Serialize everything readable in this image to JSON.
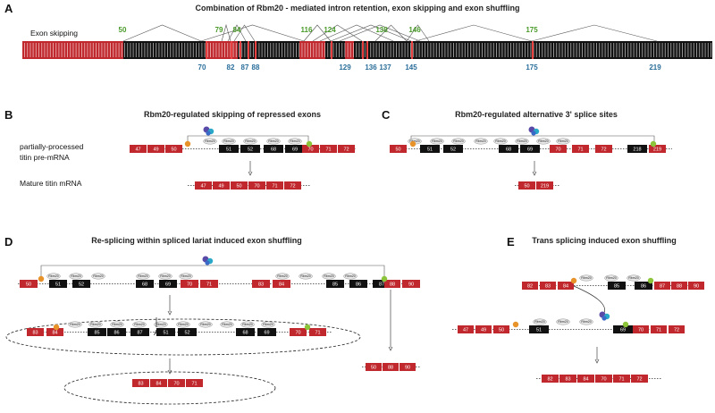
{
  "colors": {
    "exon_red": "#c0282d",
    "exon_black": "#111111",
    "green_label": "#4a9a2a",
    "blue_label": "#2a6e9a",
    "branch_orange": "#e8922a",
    "branch_green": "#8cc43a",
    "rbm20": "#e9e9e9"
  },
  "panelA": {
    "letter": "A",
    "title": "Combination of Rbm20 - mediated intron retention, exon skipping and exon shuffling",
    "row_label": "Exon skipping",
    "green_labels": [
      "50",
      "79",
      "84",
      "116",
      "124",
      "138",
      "146",
      "175"
    ],
    "blue_labels": [
      "70",
      "82",
      "87",
      "88",
      "129",
      "136",
      "137",
      "145",
      "175",
      "219"
    ]
  },
  "panelB": {
    "letter": "B",
    "title": "Rbm20-regulated skipping of repressed exons",
    "premrna_label": "partially-processed\ntitin pre-mRNA",
    "mature_label": "Mature titin mRNA",
    "pre_exons": [
      "47",
      "49",
      "50",
      "51",
      "52",
      "68",
      "69",
      "70",
      "71",
      "72"
    ],
    "mature_exons": [
      "47",
      "49",
      "50",
      "70",
      "71",
      "72"
    ]
  },
  "panelC": {
    "letter": "C",
    "title": "Rbm20-regulated alternative 3' splice sites",
    "pre_exons": [
      "50",
      "51",
      "52",
      "68",
      "69",
      "70",
      "71",
      "72",
      "218",
      "219"
    ],
    "mature_exons": [
      "50",
      "219"
    ]
  },
  "panelD": {
    "letter": "D",
    "title": "Re-splicing within spliced lariat induced exon shuffling",
    "row1_exons": [
      "50",
      "51",
      "52",
      "68",
      "69",
      "70",
      "71",
      "83",
      "84",
      "85",
      "86",
      "87",
      "88",
      "90"
    ],
    "row2_exons": [
      "83",
      "84",
      "85",
      "86",
      "87",
      "51",
      "52",
      "68",
      "69",
      "70",
      "71"
    ],
    "row3_exons": [
      "83",
      "84",
      "70",
      "71"
    ],
    "side_exons": [
      "50",
      "88",
      "90"
    ]
  },
  "panelE": {
    "letter": "E",
    "title": "Trans splicing induced exon shuffling",
    "top_exons": [
      "82",
      "83",
      "84",
      "85",
      "86",
      "87",
      "88",
      "90"
    ],
    "bottom_exons": [
      "47",
      "49",
      "50",
      "51",
      "69",
      "70",
      "71",
      "72"
    ],
    "result_exons": [
      "82",
      "83",
      "84",
      "70",
      "71",
      "72"
    ]
  },
  "rbm20_label": "Rbm20",
  "lariat_branch": "A"
}
